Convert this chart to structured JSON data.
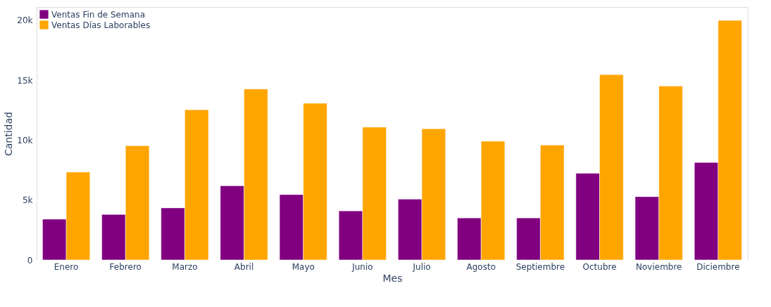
{
  "chart_data": {
    "type": "bar",
    "xlabel": "Mes",
    "ylabel": "Cantidad",
    "categories": [
      "Enero",
      "Febrero",
      "Marzo",
      "Abril",
      "Mayo",
      "Junio",
      "Julio",
      "Agosto",
      "Septiembre",
      "Octubre",
      "Noviembre",
      "Diciembre"
    ],
    "series": [
      {
        "name": "Ventas Fin de Semana",
        "color": "#800080",
        "values": [
          3400,
          3790,
          4340,
          6190,
          5450,
          4090,
          5070,
          3500,
          3500,
          7230,
          5280,
          8130
        ]
      },
      {
        "name": "Ventas Días Laborables",
        "color": "#ffa500",
        "values": [
          7330,
          9530,
          12530,
          14260,
          13070,
          11080,
          10940,
          9900,
          9590,
          15460,
          14500,
          19980
        ]
      }
    ],
    "ylim": [
      0,
      21100
    ],
    "yticks": [
      0,
      {
        "value": 5000,
        "label": "5k"
      },
      {
        "value": 10000,
        "label": "10k"
      },
      {
        "value": 15000,
        "label": "15k"
      },
      {
        "value": 20000,
        "label": "20k"
      }
    ],
    "grid": "y",
    "legend": "top left"
  }
}
